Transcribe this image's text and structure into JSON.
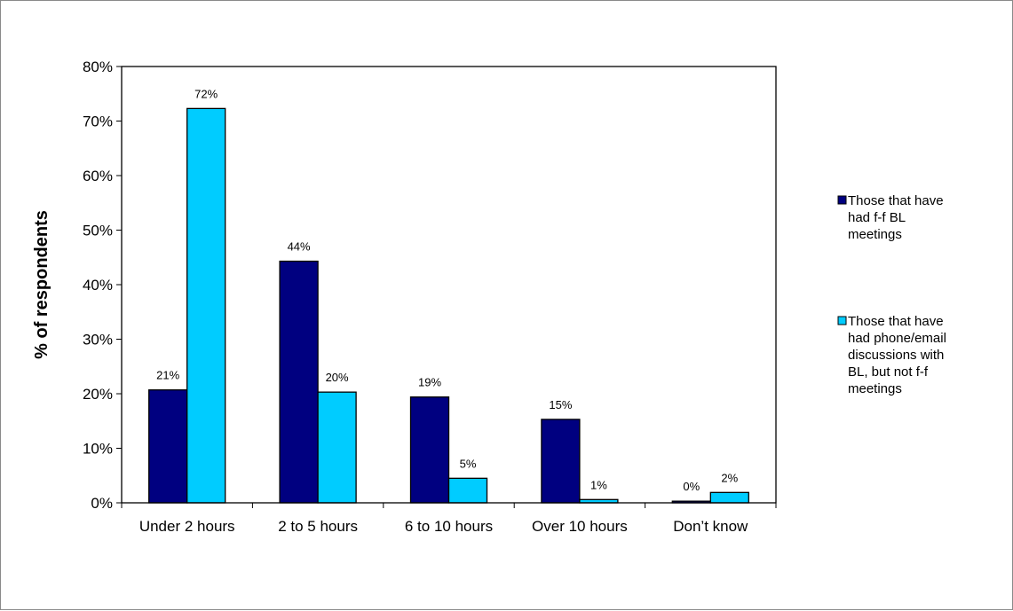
{
  "chart_data": {
    "type": "bar",
    "title": "",
    "xlabel": "",
    "ylabel": "% of respondents",
    "ylim": [
      0,
      80
    ],
    "yticks": [
      0,
      10,
      20,
      30,
      40,
      50,
      60,
      70,
      80
    ],
    "ytick_labels": [
      "0%",
      "10%",
      "20%",
      "30%",
      "40%",
      "50%",
      "60%",
      "70%",
      "80%"
    ],
    "categories": [
      "Under 2 hours",
      "2 to 5 hours",
      "6 to 10 hours",
      "Over 10 hours",
      "Don’t know"
    ],
    "series": [
      {
        "name": "Those that have had f-f BL meetings",
        "name_lines": [
          "Those that have",
          "had f-f BL",
          "meetings"
        ],
        "color": "#000080",
        "values": [
          20.7,
          44.3,
          19.4,
          15.3,
          0.3
        ],
        "labels": [
          "21%",
          "44%",
          "19%",
          "15%",
          "0%"
        ]
      },
      {
        "name": "Those that have had phone/email discussions with BL, but not f-f meetings",
        "name_lines": [
          "Those that have",
          "had phone/email",
          "discussions with",
          "BL, but not f-f",
          "meetings"
        ],
        "color": "#00CCFF",
        "values": [
          72.3,
          20.3,
          4.5,
          0.6,
          1.9
        ],
        "labels": [
          "72%",
          "20%",
          "5%",
          "1%",
          "2%"
        ]
      }
    ],
    "grid": false,
    "legend_position": "right"
  }
}
